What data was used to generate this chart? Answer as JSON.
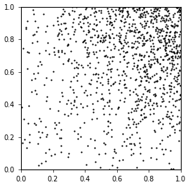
{
  "title": "",
  "xlim": [
    0.0,
    1.0
  ],
  "ylim": [
    0.0,
    1.0
  ],
  "xticks": [
    0.0,
    0.2,
    0.4,
    0.6,
    0.8,
    1.0
  ],
  "yticks": [
    0.0,
    0.2,
    0.4,
    0.6,
    0.8,
    1.0
  ],
  "marker": ".",
  "marker_size": 2.5,
  "marker_color": "black",
  "figsize": [
    2.71,
    2.67
  ],
  "dpi": 100,
  "n_sparse": 300,
  "n_dense": 800,
  "seed": 99,
  "background": "white",
  "tick_labelsize": 7,
  "spine_linewidth": 0.8
}
